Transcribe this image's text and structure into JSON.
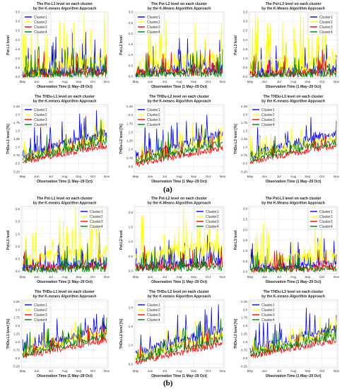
{
  "figure": {
    "panel_labels": [
      "(a)",
      "(b)"
    ],
    "months": [
      "May",
      "Jun",
      "Jul",
      "Aug",
      "Sep",
      "Oct",
      "Nov"
    ],
    "xlabel": "Observation Time (1 May–29 Oct)",
    "series_names": [
      "Cluster1",
      "Cluster2",
      "Cluster3",
      "Cluster4"
    ],
    "colors": {
      "Cluster1": "#0000ff",
      "Cluster2": "#ffff00",
      "Cluster3": "#ff0000",
      "Cluster4": "#008000"
    }
  },
  "chart_data": [
    {
      "id": "a-pst-l1",
      "type": "line",
      "title": "The Pst-L1 level on each cluster\nby the K-means Algorithm Approach",
      "xlabel": "Observation Time (1 May–29 Oct)",
      "ylabel": "Pst-L1 level",
      "ylim": [
        -0.1,
        3.5
      ],
      "yticks": [
        0.0,
        0.5,
        1.0,
        1.5,
        2.0,
        2.5,
        3.0,
        3.5
      ],
      "x_range": [
        "2021-05-01",
        "2021-10-29"
      ],
      "xticks": [
        "May",
        "Jun",
        "Jul",
        "Aug",
        "Sep",
        "Oct",
        "Nov"
      ],
      "legend": "top-left",
      "grid": true,
      "series": [
        {
          "name": "Cluster1",
          "color": "#0000ff",
          "base": 0.3,
          "amp": 1.8
        },
        {
          "name": "Cluster2",
          "color": "#ffff00",
          "base": 0.6,
          "amp": 3.2
        },
        {
          "name": "Cluster3",
          "color": "#ff0000",
          "base": 0.2,
          "amp": 1.2
        },
        {
          "name": "Cluster4",
          "color": "#008000",
          "base": 0.1,
          "amp": 1.4
        }
      ]
    },
    {
      "id": "a-pst-l2",
      "type": "line",
      "title": "The Pst-L2 level on each cluster\nby the K-Means Algorithm Approach",
      "xlabel": "Observation Time (1 May–29 Oct)",
      "ylabel": "Pst-L2 level",
      "ylim": [
        -0.1,
        3.0
      ],
      "yticks": [
        0.0,
        0.5,
        1.0,
        1.5,
        2.0,
        2.5,
        3.0
      ],
      "x_range": [
        "2021-05-01",
        "2021-10-29"
      ],
      "xticks": [
        "May",
        "Jun",
        "Jul",
        "Aug",
        "Sep",
        "Oct",
        "Nov"
      ],
      "legend": "top-left",
      "grid": true,
      "series": [
        {
          "name": "Cluster1",
          "color": "#0000ff",
          "base": 0.3,
          "amp": 1.5
        },
        {
          "name": "Cluster2",
          "color": "#ffff00",
          "base": 0.6,
          "amp": 2.8
        },
        {
          "name": "Cluster3",
          "color": "#ff0000",
          "base": 0.2,
          "amp": 1.0
        },
        {
          "name": "Cluster4",
          "color": "#008000",
          "base": 0.1,
          "amp": 1.0
        }
      ]
    },
    {
      "id": "a-pst-l3",
      "type": "line",
      "title": "The Pst-L3 level on each cluster\nby the K-Means Algorithm Approach",
      "xlabel": "Observation Time (1 May–29 Oct)",
      "ylabel": "Pst-L3 level",
      "ylim": [
        -0.1,
        3.5
      ],
      "yticks": [
        0.0,
        0.5,
        1.0,
        1.5,
        2.0,
        2.5,
        3.0,
        3.5
      ],
      "x_range": [
        "2021-05-01",
        "2021-10-29"
      ],
      "xticks": [
        "May",
        "Jun",
        "Jul",
        "Aug",
        "Sep",
        "Oct",
        "Nov"
      ],
      "legend": "top-right",
      "grid": true,
      "series": [
        {
          "name": "Cluster1",
          "color": "#0000ff",
          "base": 0.3,
          "amp": 1.6
        },
        {
          "name": "Cluster2",
          "color": "#ffff00",
          "base": 0.6,
          "amp": 3.0
        },
        {
          "name": "Cluster3",
          "color": "#ff0000",
          "base": 0.2,
          "amp": 1.2
        },
        {
          "name": "Cluster4",
          "color": "#008000",
          "base": 0.1,
          "amp": 1.1
        }
      ]
    },
    {
      "id": "a-thdu-l1",
      "type": "line",
      "title": "The THDu-L1 level on each cluster\nby the K-means Algorithm Approach",
      "xlabel": "Observation Time (1 May–29 Oct)",
      "ylabel": "THDu-L1 level [%]",
      "ylim": [
        0.2,
        2.3
      ],
      "yticks": [
        0.25,
        0.5,
        0.75,
        1.0,
        1.25,
        1.5,
        1.75,
        2.0,
        2.25
      ],
      "x_range": [
        "2021-05-01",
        "2021-10-29"
      ],
      "xticks": [
        "May",
        "Jun",
        "Jul",
        "Aug",
        "Sep",
        "Oct",
        "Nov"
      ],
      "legend": "top-left",
      "grid": true,
      "series": [
        {
          "name": "Cluster1",
          "color": "#0000ff",
          "base": 1.1,
          "amp": 0.8
        },
        {
          "name": "Cluster2",
          "color": "#ffff00",
          "base": 1.0,
          "amp": 0.6
        },
        {
          "name": "Cluster3",
          "color": "#ff0000",
          "base": 0.8,
          "amp": 0.5
        },
        {
          "name": "Cluster4",
          "color": "#008000",
          "base": 0.9,
          "amp": 0.6
        }
      ]
    },
    {
      "id": "a-thdu-l2",
      "type": "line",
      "title": "The THDu-L2 level on each cluster\nby the K-means Algorithm Approach",
      "xlabel": "Observation Time (1 May–29 Oct)",
      "ylabel": "THDu-L2 level [%]",
      "ylim": [
        0.3,
        2.3
      ],
      "yticks": [
        0.5,
        0.75,
        1.0,
        1.25,
        1.5,
        1.75,
        2.0,
        2.25
      ],
      "x_range": [
        "2021-05-01",
        "2021-10-29"
      ],
      "xticks": [
        "May",
        "Jun",
        "Jul",
        "Aug",
        "Sep",
        "Oct",
        "Nov"
      ],
      "legend": "top-left",
      "grid": true,
      "series": [
        {
          "name": "Cluster1",
          "color": "#0000ff",
          "base": 1.1,
          "amp": 0.8
        },
        {
          "name": "Cluster2",
          "color": "#ffff00",
          "base": 1.0,
          "amp": 0.6
        },
        {
          "name": "Cluster3",
          "color": "#ff0000",
          "base": 0.8,
          "amp": 0.5
        },
        {
          "name": "Cluster4",
          "color": "#008000",
          "base": 0.9,
          "amp": 0.6
        }
      ]
    },
    {
      "id": "a-thdu-l3",
      "type": "line",
      "title": "The THDu-L3 level on each cluster\nby the K-means Algorithm Approach",
      "xlabel": "Observation Time (1 May–29 Oct)",
      "ylabel": "THDu-L3 level [%]",
      "ylim": [
        0.2,
        2.3
      ],
      "yticks": [
        0.25,
        0.5,
        0.75,
        1.0,
        1.25,
        1.5,
        1.75,
        2.0,
        2.25
      ],
      "x_range": [
        "2021-05-01",
        "2021-10-29"
      ],
      "xticks": [
        "May",
        "Jun",
        "Jul",
        "Aug",
        "Sep",
        "Oct",
        "Nov"
      ],
      "legend": "top-left",
      "grid": true,
      "series": [
        {
          "name": "Cluster1",
          "color": "#0000ff",
          "base": 1.1,
          "amp": 0.8
        },
        {
          "name": "Cluster2",
          "color": "#ffff00",
          "base": 1.0,
          "amp": 0.6
        },
        {
          "name": "Cluster3",
          "color": "#ff0000",
          "base": 0.8,
          "amp": 0.5
        },
        {
          "name": "Cluster4",
          "color": "#008000",
          "base": 0.9,
          "amp": 0.6
        }
      ]
    },
    {
      "id": "b-pst-l1",
      "type": "line",
      "title": "The Pst-L1 level on each cluster\nby the K-means Algorithm Approach",
      "xlabel": "Observation Time (1 May–29 Oct)",
      "ylabel": "Pst-L1 level",
      "ylim": [
        -0.1,
        2.6
      ],
      "yticks": [
        0.0,
        0.5,
        1.0,
        1.5,
        2.0,
        2.5
      ],
      "x_range": [
        "2021-05-01",
        "2021-10-29"
      ],
      "xticks": [
        "May",
        "Jun",
        "Jul",
        "Aug",
        "Sep",
        "Oct",
        "Nov"
      ],
      "legend": "top-right",
      "grid": true,
      "series": [
        {
          "name": "Cluster1",
          "color": "#0000ff",
          "base": 0.25,
          "amp": 1.2
        },
        {
          "name": "Cluster2",
          "color": "#ffff00",
          "base": 0.6,
          "amp": 2.0
        },
        {
          "name": "Cluster3",
          "color": "#ff0000",
          "base": 0.15,
          "amp": 0.8
        },
        {
          "name": "Cluster4",
          "color": "#008000",
          "base": 0.1,
          "amp": 0.9
        }
      ]
    },
    {
      "id": "b-pst-l2",
      "type": "line",
      "title": "The Pst-L2 level on each cluster\nby the K-Means Algorithm Approach",
      "xlabel": "Observation Time (1 May–29 Oct)",
      "ylabel": "Pst-L2 level",
      "ylim": [
        -0.1,
        2.2
      ],
      "yticks": [
        0.0,
        0.5,
        1.0,
        1.5,
        2.0
      ],
      "x_range": [
        "2021-05-01",
        "2021-10-29"
      ],
      "xticks": [
        "May",
        "Jun",
        "Jul",
        "Aug",
        "Sep",
        "Oct",
        "Nov"
      ],
      "legend": "top-right",
      "grid": true,
      "series": [
        {
          "name": "Cluster1",
          "color": "#0000ff",
          "base": 0.25,
          "amp": 1.0
        },
        {
          "name": "Cluster2",
          "color": "#ffff00",
          "base": 0.6,
          "amp": 1.8
        },
        {
          "name": "Cluster3",
          "color": "#ff0000",
          "base": 0.15,
          "amp": 0.7
        },
        {
          "name": "Cluster4",
          "color": "#008000",
          "base": 0.1,
          "amp": 0.8
        }
      ]
    },
    {
      "id": "b-pst-l3",
      "type": "line",
      "title": "The Pst-L3 level on each cluster\nby the K-Means Algorithm Approach",
      "xlabel": "Observation Time (1 May–29 Oct)",
      "ylabel": "Pst-L3 level",
      "ylim": [
        -0.1,
        3.1
      ],
      "yticks": [
        0.0,
        0.5,
        1.0,
        1.5,
        2.0,
        2.5,
        3.0
      ],
      "x_range": [
        "2021-05-01",
        "2021-10-29"
      ],
      "xticks": [
        "May",
        "Jun",
        "Jul",
        "Aug",
        "Sep",
        "Oct",
        "Nov"
      ],
      "legend": "top-right",
      "grid": true,
      "series": [
        {
          "name": "Cluster1",
          "color": "#0000ff",
          "base": 0.25,
          "amp": 1.2
        },
        {
          "name": "Cluster2",
          "color": "#ffff00",
          "base": 0.6,
          "amp": 1.8
        },
        {
          "name": "Cluster3",
          "color": "#ff0000",
          "base": 0.15,
          "amp": 0.9
        },
        {
          "name": "Cluster4",
          "color": "#008000",
          "base": 0.1,
          "amp": 0.8
        }
      ]
    },
    {
      "id": "b-thdu-l1",
      "type": "line",
      "title": "The THDu-L1 level on each cluster\nby the K-means Algorithm Approach",
      "xlabel": "Observation Time (1 May–29 Oct)",
      "ylabel": "THDu-L1 level [%]",
      "ylim": [
        0.2,
        2.3
      ],
      "yticks": [
        0.25,
        0.5,
        0.75,
        1.0,
        1.25,
        1.5,
        1.75,
        2.0,
        2.25
      ],
      "x_range": [
        "2021-05-01",
        "2021-10-29"
      ],
      "xticks": [
        "May",
        "Jun",
        "Jul",
        "Aug",
        "Sep",
        "Oct",
        "Nov"
      ],
      "legend": "top-left",
      "grid": true,
      "series": [
        {
          "name": "Cluster1",
          "color": "#0000ff",
          "base": 1.1,
          "amp": 0.8
        },
        {
          "name": "Cluster2",
          "color": "#ffff00",
          "base": 1.0,
          "amp": 0.6
        },
        {
          "name": "Cluster3",
          "color": "#ff0000",
          "base": 0.8,
          "amp": 0.5
        },
        {
          "name": "Cluster4",
          "color": "#008000",
          "base": 0.9,
          "amp": 0.6
        }
      ]
    },
    {
      "id": "b-thdu-l2",
      "type": "line",
      "title": "The THDu-L2 level on each cluster\nby the K-means Algorithm Approach",
      "xlabel": "Observation Time (1 May–29 Oct)",
      "ylabel": "THDu-L2 level [%]",
      "ylim": [
        0.4,
        2.2
      ],
      "yticks": [
        0.5,
        1.0,
        1.5,
        2.0
      ],
      "x_range": [
        "2021-05-01",
        "2021-10-29"
      ],
      "xticks": [
        "May",
        "Jun",
        "Jul",
        "Aug",
        "Sep",
        "Oct",
        "Nov"
      ],
      "legend": "top-left",
      "grid": true,
      "series": [
        {
          "name": "Cluster1",
          "color": "#0000ff",
          "base": 1.1,
          "amp": 0.8
        },
        {
          "name": "Cluster2",
          "color": "#ffff00",
          "base": 1.0,
          "amp": 0.6
        },
        {
          "name": "Cluster3",
          "color": "#ff0000",
          "base": 0.8,
          "amp": 0.5
        },
        {
          "name": "Cluster4",
          "color": "#008000",
          "base": 0.9,
          "amp": 0.6
        }
      ]
    },
    {
      "id": "b-thdu-l3",
      "type": "line",
      "title": "The THDu-L3 level on each cluster\nby the K-means Algorithm Approach",
      "xlabel": "Observation Time (1 May–29 Oct)",
      "ylabel": "THDu-L3 level [%]",
      "ylim": [
        0.2,
        2.3
      ],
      "yticks": [
        0.25,
        0.5,
        0.75,
        1.0,
        1.25,
        1.5,
        1.75,
        2.0,
        2.25
      ],
      "x_range": [
        "2021-05-01",
        "2021-10-29"
      ],
      "xticks": [
        "May",
        "Jun",
        "Jul",
        "Aug",
        "Sep",
        "Oct",
        "Nov"
      ],
      "legend": "top-left",
      "grid": true,
      "series": [
        {
          "name": "Cluster1",
          "color": "#0000ff",
          "base": 1.1,
          "amp": 0.8
        },
        {
          "name": "Cluster2",
          "color": "#ffff00",
          "base": 1.0,
          "amp": 0.6
        },
        {
          "name": "Cluster3",
          "color": "#ff0000",
          "base": 0.8,
          "amp": 0.5
        },
        {
          "name": "Cluster4",
          "color": "#008000",
          "base": 0.9,
          "amp": 0.6
        }
      ]
    }
  ]
}
